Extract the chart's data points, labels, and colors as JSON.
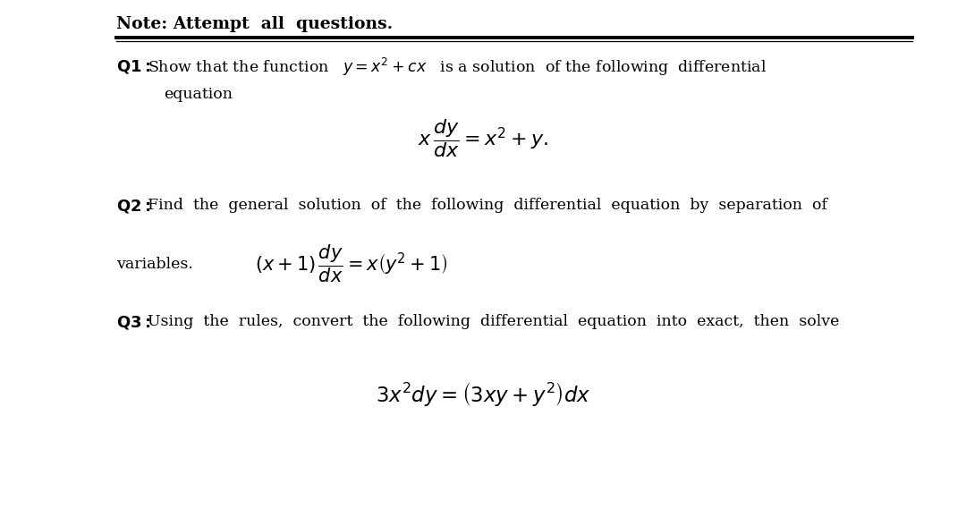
{
  "background_color": "#ffffff",
  "line_color": "#000000",
  "text_color": "#000000",
  "header": "Note: Attempt  all  questions.",
  "q1_line1": "Show that the function   $y = x^2 + cx$   is a solution  of the following  differential",
  "q1_line2": "equation",
  "q1_eq": "$x\\,\\dfrac{dy}{dx} = x^2 + y.$",
  "q2_line1": "Find  the  general  solution  of  the  following  differential  equation  by  separation  of",
  "q2_line2": "variables.",
  "q2_eq": "$(x+1)\\,\\dfrac{dy}{dx} = x\\left(y^{2}+1\\right)$",
  "q3_line1": "Using  the  rules,  convert  the  following  differential  equation  into  exact,  then  solve",
  "q3_eq": "$3x^{2}dy = \\left(3xy + y^{2}\\right)dx$",
  "fs_header": 13.5,
  "fs_body": 12.5,
  "fs_eq1": 14,
  "fs_eq2": 13,
  "fs_eq3": 14.5
}
